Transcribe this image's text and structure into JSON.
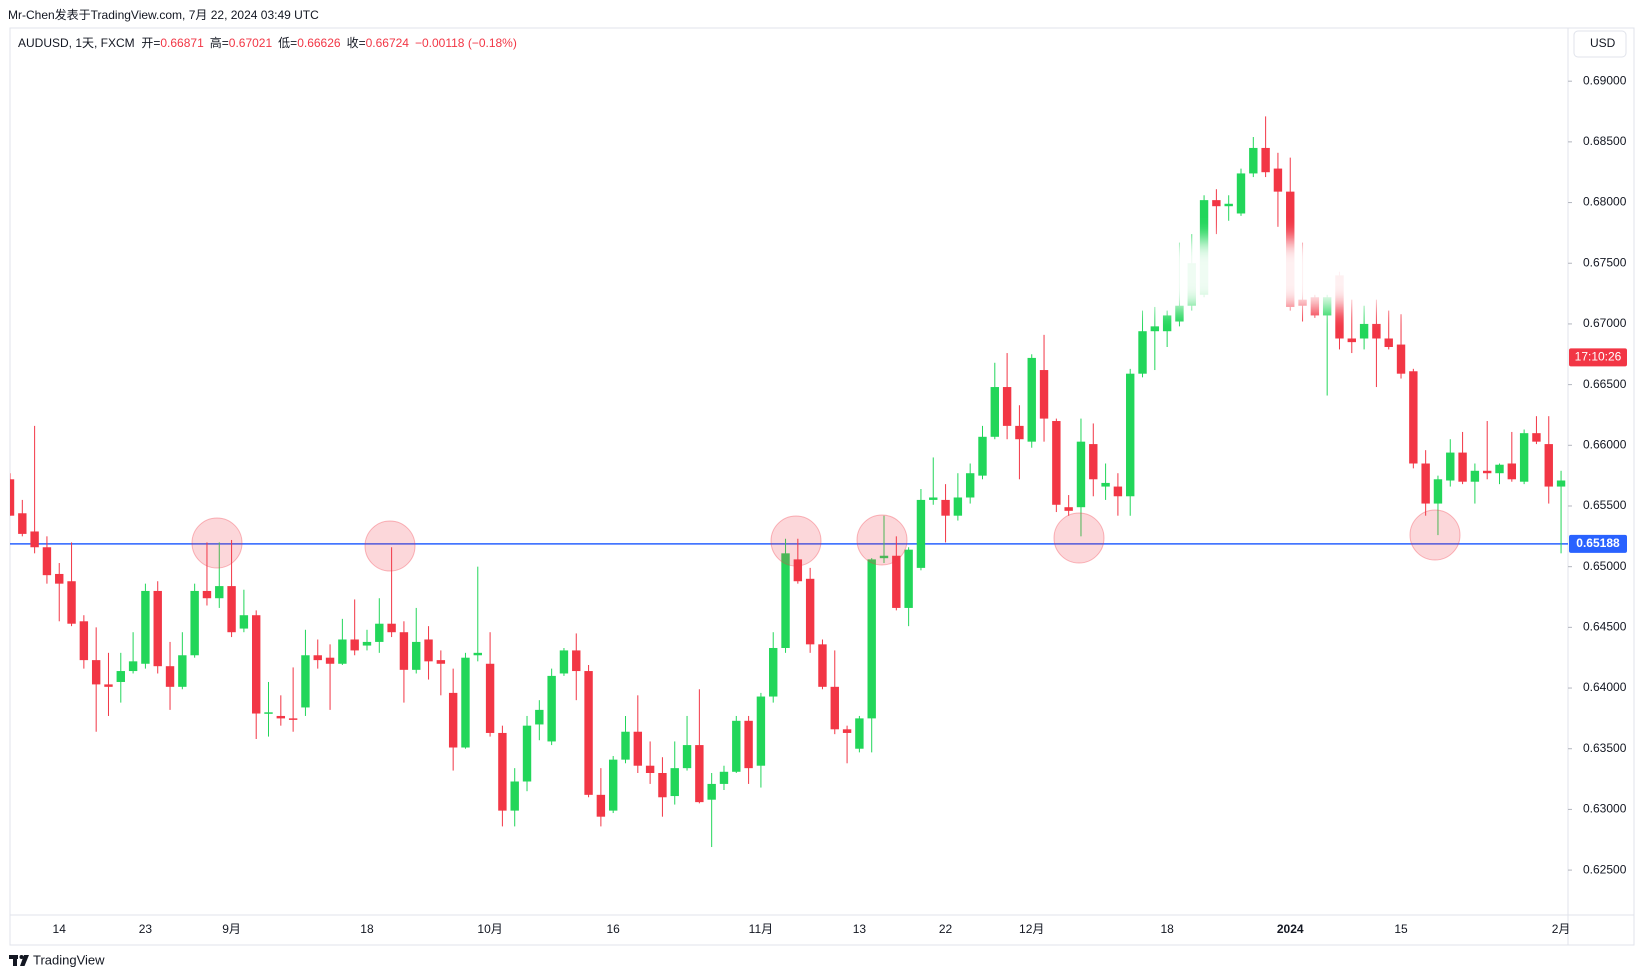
{
  "attribution": "Mr-Chen发表于TradingView.com, 7月 22, 2024 03:49 UTC",
  "footer": "TradingView",
  "chart_data": {
    "type": "candlestick",
    "symbol": "AUDUSD, 1天, FXCM",
    "ohlc_legend": [
      {
        "key": "开=",
        "val": "0.66871"
      },
      {
        "key": "高=",
        "val": "0.67021"
      },
      {
        "key": "低=",
        "val": "0.66626"
      },
      {
        "key": "收=",
        "val": "0.66724"
      },
      {
        "key": "",
        "val": "−0.00118 (−0.18%)"
      }
    ],
    "currency": "USD",
    "up_color": "#22d65a",
    "down_color": "#f23645",
    "categories": [
      null,
      null,
      null,
      null,
      "14",
      null,
      null,
      null,
      null,
      null,
      null,
      "23",
      null,
      null,
      null,
      null,
      null,
      null,
      "9月",
      null,
      null,
      null,
      null,
      null,
      null,
      null,
      null,
      null,
      null,
      "18",
      null,
      null,
      null,
      null,
      null,
      null,
      null,
      null,
      null,
      "10月",
      null,
      null,
      null,
      null,
      null,
      null,
      null,
      null,
      null,
      "16",
      null,
      null,
      null,
      null,
      null,
      null,
      null,
      null,
      null,
      null,
      null,
      "11月",
      null,
      null,
      null,
      null,
      null,
      null,
      null,
      "13",
      null,
      null,
      null,
      null,
      null,
      null,
      "22",
      null,
      null,
      null,
      null,
      null,
      null,
      "12月",
      null,
      null,
      null,
      null,
      null,
      null,
      null,
      null,
      null,
      null,
      "18",
      null,
      null,
      null,
      null,
      null,
      null,
      null,
      null,
      null,
      "2024",
      null,
      null,
      null,
      null,
      null,
      null,
      null,
      null,
      "15",
      null,
      null,
      null,
      null,
      null,
      null,
      null,
      null,
      null,
      null,
      null,
      null,
      "2月"
    ],
    "bold_categories": [
      "2024"
    ],
    "open": [
      0.6572,
      0.6544,
      0.6529,
      0.6516,
      0.6494,
      0.6488,
      0.6455,
      0.6423,
      0.6403,
      0.6405,
      0.6414,
      0.642,
      0.648,
      0.6418,
      0.6401,
      0.6427,
      0.648,
      0.6474,
      0.6484,
      0.6449,
      0.646,
      0.6379,
      0.6377,
      0.6375,
      0.6384,
      0.6427,
      0.6425,
      0.642,
      0.644,
      0.6435,
      0.6438,
      0.6453,
      0.6446,
      0.6415,
      0.644,
      0.6423,
      0.6396,
      0.6351,
      0.6427,
      0.642,
      0.6363,
      0.6299,
      0.6323,
      0.637,
      0.6356,
      0.6412,
      0.6431,
      0.6414,
      0.6312,
      0.6299,
      0.6341,
      0.6364,
      0.6336,
      0.633,
      0.6311,
      0.6334,
      0.6353,
      0.6308,
      0.6321,
      0.6331,
      0.6373,
      0.6336,
      0.6393,
      0.6433,
      0.6506,
      0.649,
      0.6436,
      0.6401,
      0.6366,
      0.635,
      0.6375,
      0.6507,
      0.6509,
      0.6466,
      0.6499,
      0.6555,
      0.6555,
      0.6542,
      0.6557,
      0.6575,
      0.6607,
      0.6648,
      0.6616,
      0.6603,
      0.6662,
      0.662,
      0.6549,
      0.6549,
      0.6601,
      0.6566,
      0.6566,
      0.6558,
      0.6659,
      0.6694,
      0.6694,
      0.6702,
      0.6715,
      0.6724,
      0.6802,
      0.6797,
      0.6791,
      0.6824,
      0.6845,
      0.6828,
      0.6809,
      0.672,
      0.6722,
      0.6707,
      0.674,
      0.6688,
      0.6688,
      0.67,
      0.6688,
      0.6683,
      0.6661,
      0.6585,
      0.6552,
      0.6571,
      0.6594,
      0.657,
      0.6579,
      0.6577,
      0.6585,
      0.657,
      0.661,
      0.6601,
      0.6566
    ],
    "high": [
      0.6577,
      0.6555,
      0.6616,
      0.6525,
      0.6503,
      0.652,
      0.646,
      0.645,
      0.6429,
      0.6429,
      0.6446,
      0.6486,
      0.6488,
      0.6438,
      0.6446,
      0.6486,
      0.652,
      0.652,
      0.6522,
      0.6481,
      0.6464,
      0.6405,
      0.6394,
      0.6417,
      0.6448,
      0.644,
      0.6436,
      0.6457,
      0.6473,
      0.6448,
      0.6474,
      0.6516,
      0.6455,
      0.6466,
      0.6451,
      0.6431,
      0.6416,
      0.6429,
      0.65,
      0.6446,
      0.6369,
      0.6334,
      0.6377,
      0.639,
      0.6416,
      0.6433,
      0.6445,
      0.6419,
      0.6334,
      0.6344,
      0.6377,
      0.6394,
      0.6356,
      0.6343,
      0.6356,
      0.6377,
      0.6399,
      0.633,
      0.6336,
      0.6377,
      0.6377,
      0.6396,
      0.6446,
      0.6523,
      0.6523,
      0.6499,
      0.644,
      0.6431,
      0.6369,
      0.6377,
      0.6507,
      0.6542,
      0.6525,
      0.6516,
      0.6564,
      0.659,
      0.6568,
      0.6577,
      0.6585,
      0.6616,
      0.6668,
      0.6676,
      0.6633,
      0.6675,
      0.6691,
      0.6622,
      0.6559,
      0.6622,
      0.6618,
      0.6585,
      0.6577,
      0.6663,
      0.6711,
      0.6714,
      0.6711,
      0.6767,
      0.6774,
      0.6806,
      0.6811,
      0.6806,
      0.6828,
      0.6854,
      0.6871,
      0.6841,
      0.6837,
      0.6767,
      0.6724,
      0.6724,
      0.6743,
      0.672,
      0.6715,
      0.672,
      0.6711,
      0.6708,
      0.6663,
      0.6596,
      0.6575,
      0.6605,
      0.6611,
      0.6585,
      0.662,
      0.6585,
      0.6611,
      0.6613,
      0.6624,
      0.6624,
      0.6579
    ],
    "low": [
      0.6542,
      0.6525,
      0.6511,
      0.6486,
      0.6455,
      0.6451,
      0.6416,
      0.6364,
      0.6377,
      0.6388,
      0.6412,
      0.6416,
      0.6412,
      0.6382,
      0.6399,
      0.6425,
      0.6468,
      0.6466,
      0.6442,
      0.6446,
      0.6358,
      0.636,
      0.6369,
      0.6364,
      0.6377,
      0.6416,
      0.6382,
      0.6419,
      0.6427,
      0.6431,
      0.6429,
      0.6442,
      0.6388,
      0.6412,
      0.6407,
      0.6394,
      0.6332,
      0.635,
      0.6422,
      0.636,
      0.6286,
      0.6286,
      0.6315,
      0.6357,
      0.6353,
      0.641,
      0.639,
      0.631,
      0.6286,
      0.6297,
      0.6338,
      0.633,
      0.6321,
      0.6294,
      0.6304,
      0.6332,
      0.6305,
      0.6269,
      0.6316,
      0.633,
      0.6321,
      0.6318,
      0.6388,
      0.6429,
      0.6486,
      0.6429,
      0.6399,
      0.6362,
      0.6338,
      0.6347,
      0.6347,
      0.6503,
      0.6464,
      0.6451,
      0.6497,
      0.6551,
      0.652,
      0.6538,
      0.6552,
      0.6572,
      0.6605,
      0.6605,
      0.6572,
      0.6598,
      0.6603,
      0.6545,
      0.6542,
      0.6525,
      0.6558,
      0.6555,
      0.6542,
      0.6542,
      0.6656,
      0.6662,
      0.6681,
      0.6698,
      0.6711,
      0.6722,
      0.6774,
      0.6785,
      0.6789,
      0.6821,
      0.6821,
      0.678,
      0.6711,
      0.6702,
      0.6705,
      0.6641,
      0.6679,
      0.6676,
      0.6679,
      0.6648,
      0.6679,
      0.6655,
      0.6581,
      0.6542,
      0.6526,
      0.6566,
      0.6568,
      0.6552,
      0.6572,
      0.6568,
      0.657,
      0.6568,
      0.6601,
      0.6552,
      0.6511
    ],
    "close": [
      0.6542,
      0.6527,
      0.6516,
      0.6493,
      0.6486,
      0.6453,
      0.6423,
      0.6403,
      0.6401,
      0.6414,
      0.6422,
      0.648,
      0.6418,
      0.6401,
      0.6427,
      0.648,
      0.6474,
      0.6484,
      0.6446,
      0.646,
      0.6379,
      0.638,
      0.6375,
      0.6374,
      0.6427,
      0.6423,
      0.642,
      0.644,
      0.6431,
      0.6438,
      0.6453,
      0.6446,
      0.6415,
      0.6438,
      0.6422,
      0.642,
      0.6351,
      0.6425,
      0.6429,
      0.6363,
      0.6299,
      0.6323,
      0.6369,
      0.6382,
      0.641,
      0.6431,
      0.6414,
      0.6312,
      0.6294,
      0.6341,
      0.6364,
      0.6336,
      0.633,
      0.631,
      0.6334,
      0.6353,
      0.6306,
      0.6321,
      0.6331,
      0.6373,
      0.6334,
      0.6393,
      0.6433,
      0.6511,
      0.6488,
      0.6436,
      0.6401,
      0.6366,
      0.6363,
      0.6375,
      0.6506,
      0.6509,
      0.6466,
      0.6514,
      0.6555,
      0.6557,
      0.6542,
      0.6557,
      0.6577,
      0.6607,
      0.6648,
      0.6616,
      0.6605,
      0.6672,
      0.6622,
      0.6551,
      0.6546,
      0.6603,
      0.6572,
      0.6569,
      0.6558,
      0.6659,
      0.6694,
      0.6698,
      0.6707,
      0.6715,
      0.675,
      0.6802,
      0.6797,
      0.6799,
      0.6824,
      0.6845,
      0.6825,
      0.6809,
      0.6714,
      0.6715,
      0.6707,
      0.6722,
      0.6688,
      0.6685,
      0.67,
      0.6688,
      0.6681,
      0.6659,
      0.6585,
      0.6552,
      0.6572,
      0.6594,
      0.657,
      0.6579,
      0.6577,
      0.6584,
      0.6572,
      0.661,
      0.6603,
      0.6566,
      0.6571
    ],
    "ylim": [
      0.6213,
      0.6943
    ],
    "yticks": [
      {
        "value": 0.625,
        "label": "0.62500"
      },
      {
        "value": 0.63,
        "label": "0.63000"
      },
      {
        "value": 0.635,
        "label": "0.63500"
      },
      {
        "value": 0.64,
        "label": "0.64000"
      },
      {
        "value": 0.645,
        "label": "0.64500"
      },
      {
        "value": 0.65,
        "label": "0.65000"
      },
      {
        "value": 0.655,
        "label": "0.65500"
      },
      {
        "value": 0.66,
        "label": "0.66000"
      },
      {
        "value": 0.665,
        "label": "0.66500"
      },
      {
        "value": 0.67,
        "label": "0.67000"
      },
      {
        "value": 0.675,
        "label": "0.67500"
      },
      {
        "value": 0.68,
        "label": "0.68000"
      },
      {
        "value": 0.685,
        "label": "0.68500"
      },
      {
        "value": 0.69,
        "label": "0.69000"
      }
    ],
    "hline": {
      "value": 0.65188,
      "label": "0.65188",
      "color": "#2962ff"
    },
    "last_price": 0.66724,
    "countdown": "17:10:26"
  }
}
